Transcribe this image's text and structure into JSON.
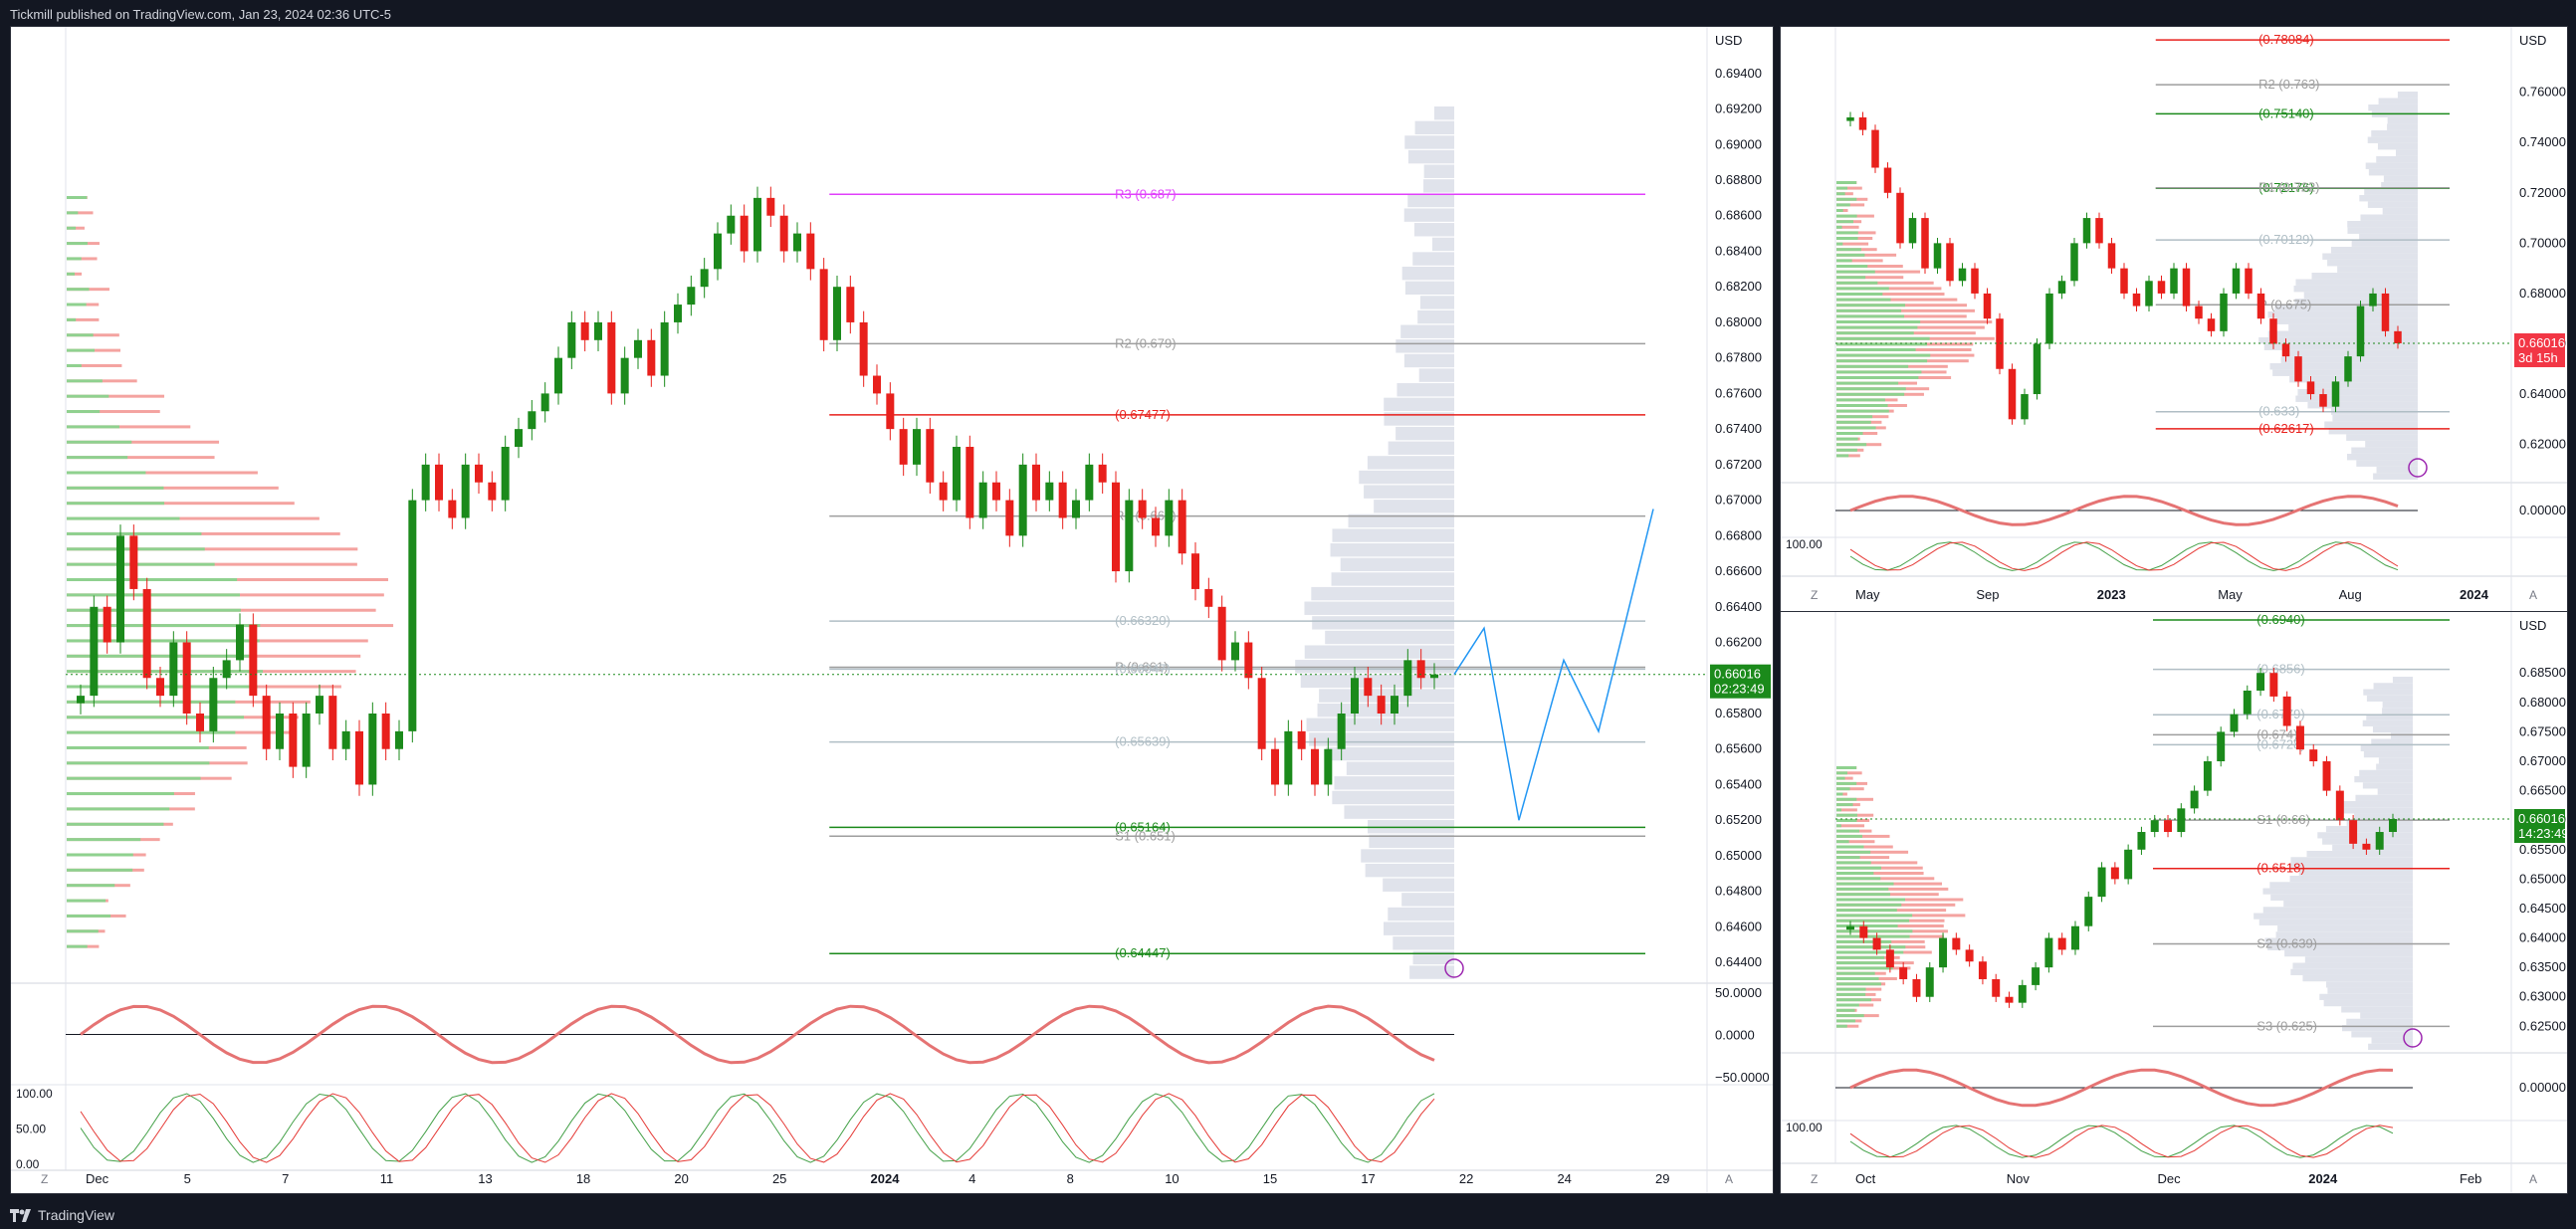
{
  "header": {
    "text": "Tickmill published on TradingView.com, Jan 23, 2024 02:36 UTC-5"
  },
  "footer": {
    "brand": "TradingView"
  },
  "colors": {
    "up": "#1b8a1b",
    "down": "#e8201c",
    "pivot": "#9e9e9e",
    "resistance_magenta": "#e040fb",
    "projection": "#2196f3",
    "orange": "#ff9800",
    "volume_profile": "#e0e3eb"
  },
  "panels": [
    {
      "id": "main",
      "currency": "USD",
      "price_labels": [
        "0.69400",
        "0.69200",
        "0.69000",
        "0.68800",
        "0.68600",
        "0.68400",
        "0.68200",
        "0.68000",
        "0.67800",
        "0.67600",
        "0.67400",
        "0.67200",
        "0.67000",
        "0.66800",
        "0.66600",
        "0.66400",
        "0.66200",
        "0.66000",
        "0.65800",
        "0.65600",
        "0.65400",
        "0.65200",
        "0.65000",
        "0.64800",
        "0.64600",
        "0.64400"
      ],
      "last_price": "0.66016",
      "countdown": "02:23:49",
      "levels": [
        {
          "label": "R3 (0.687)",
          "price": 0.6872,
          "color": "#e040fb"
        },
        {
          "label": "R2 (0.679)",
          "price": 0.6788,
          "color": "#9e9e9e"
        },
        {
          "label": "(0.67477)",
          "price": 0.6748,
          "color": "#e8201c"
        },
        {
          "label": "R1 (0.669)",
          "price": 0.6691,
          "color": "#9e9e9e"
        },
        {
          "label": "(0.66320)",
          "price": 0.6632,
          "color": "#b0bec5"
        },
        {
          "label": "P (0.661)",
          "price": 0.6606,
          "color": "#9e9e9e"
        },
        {
          "label": "(0.66047)",
          "price": 0.6605,
          "color": "#b0bec5"
        },
        {
          "label": "(0.65639)",
          "price": 0.6564,
          "color": "#b0bec5"
        },
        {
          "label": "(0.65164)",
          "price": 0.6516,
          "color": "#1b8a1b"
        },
        {
          "label": "S1 (0.651)",
          "price": 0.6511,
          "color": "#9e9e9e"
        },
        {
          "label": "(0.64447)",
          "price": 0.6445,
          "color": "#1b8a1b"
        }
      ],
      "osc1_labels": [
        "50.0000",
        "0.0000",
        "−50.0000"
      ],
      "osc2_labels": [
        "100.00",
        "50.00",
        "0.00"
      ],
      "time_labels": [
        "Dec",
        "5",
        "7",
        "11",
        "13",
        "18",
        "20",
        "25",
        "2024",
        "4",
        "8",
        "10",
        "15",
        "17",
        "22",
        "24",
        "29"
      ],
      "buttons": [
        "Z",
        "A"
      ]
    },
    {
      "id": "top-right",
      "currency": "USD",
      "price_labels": [
        "0.76000",
        "0.74000",
        "0.72000",
        "0.70000",
        "0.68000",
        "0.66000",
        "0.64000",
        "0.62000"
      ],
      "last_price": "0.66016",
      "countdown": "3d 15h",
      "levels": [
        {
          "label": "(0.78084)",
          "price": 0.7808,
          "color": "#e8201c"
        },
        {
          "label": "R2 (0.763)",
          "price": 0.763,
          "color": "#9e9e9e"
        },
        {
          "label": "(0.75140)",
          "price": 0.7514,
          "color": "#1b8a1b"
        },
        {
          "label": "(0.72176)",
          "price": 0.7218,
          "color": "#1b8a1b"
        },
        {
          "label": "R1 (0.722)",
          "price": 0.722,
          "color": "#9e9e9e"
        },
        {
          "label": "(0.70129)",
          "price": 0.7013,
          "color": "#b0bec5"
        },
        {
          "label": "P (0.675)",
          "price": 0.6755,
          "color": "#9e9e9e"
        },
        {
          "label": "(0.633)",
          "price": 0.633,
          "color": "#b0bec5"
        },
        {
          "label": "(0.62617)",
          "price": 0.6262,
          "color": "#e8201c"
        }
      ],
      "osc1_labels": [
        "0.00000"
      ],
      "osc2_labels": [
        "100.00"
      ],
      "time_labels": [
        "May",
        "Sep",
        "2023",
        "May",
        "Aug",
        "2024"
      ],
      "buttons": [
        "Z",
        "A"
      ]
    },
    {
      "id": "bottom-right",
      "currency": "USD",
      "price_labels": [
        "0.68500",
        "0.68000",
        "0.67500",
        "0.67000",
        "0.66500",
        "0.66000",
        "0.65500",
        "0.65000",
        "0.64500",
        "0.64000",
        "0.63500",
        "0.63000",
        "0.62500"
      ],
      "last_price": "0.66016",
      "countdown": "14:23:49",
      "levels": [
        {
          "label": "(0.6940)",
          "price": 0.694,
          "color": "#1b8a1b"
        },
        {
          "label": "(0.6856)",
          "price": 0.6856,
          "color": "#b0bec5"
        },
        {
          "label": "(0.6779)",
          "price": 0.6779,
          "color": "#b0bec5"
        },
        {
          "label": "(0.674)",
          "price": 0.6745,
          "color": "#9e9e9e"
        },
        {
          "label": "(0.6728)",
          "price": 0.6728,
          "color": "#b0bec5"
        },
        {
          "label": "S1 (0.66)",
          "price": 0.66,
          "color": "#9e9e9e"
        },
        {
          "label": "(0.6518)",
          "price": 0.6518,
          "color": "#e8201c"
        },
        {
          "label": "S2 (0.639)",
          "price": 0.639,
          "color": "#9e9e9e"
        },
        {
          "label": "S3 (0.625)",
          "price": 0.625,
          "color": "#9e9e9e"
        }
      ],
      "osc1_labels": [
        "0.00000"
      ],
      "osc2_labels": [
        "100.00"
      ],
      "time_labels": [
        "Oct",
        "Nov",
        "Dec",
        "2024",
        "Feb"
      ],
      "buttons": [
        "Z",
        "A"
      ]
    }
  ],
  "chart_data": [
    {
      "type": "candlestick",
      "title": "",
      "ylim": [
        0.643,
        0.6955
      ],
      "closes": [
        0.659,
        0.664,
        0.662,
        0.668,
        0.665,
        0.66,
        0.659,
        0.662,
        0.658,
        0.657,
        0.66,
        0.661,
        0.663,
        0.659,
        0.656,
        0.658,
        0.655,
        0.658,
        0.659,
        0.656,
        0.657,
        0.654,
        0.658,
        0.656,
        0.657,
        0.67,
        0.672,
        0.67,
        0.669,
        0.672,
        0.671,
        0.67,
        0.673,
        0.674,
        0.675,
        0.676,
        0.678,
        0.68,
        0.679,
        0.68,
        0.676,
        0.678,
        0.679,
        0.677,
        0.68,
        0.681,
        0.682,
        0.683,
        0.685,
        0.686,
        0.684,
        0.687,
        0.686,
        0.684,
        0.685,
        0.683,
        0.679,
        0.682,
        0.68,
        0.677,
        0.676,
        0.674,
        0.672,
        0.674,
        0.671,
        0.67,
        0.673,
        0.669,
        0.671,
        0.67,
        0.668,
        0.672,
        0.67,
        0.671,
        0.669,
        0.67,
        0.672,
        0.671,
        0.666,
        0.67,
        0.669,
        0.668,
        0.67,
        0.667,
        0.665,
        0.664,
        0.661,
        0.662,
        0.66,
        0.656,
        0.654,
        0.657,
        0.656,
        0.654,
        0.656,
        0.658,
        0.66,
        0.659,
        0.658,
        0.659,
        0.661,
        0.66,
        0.6602
      ]
    },
    {
      "type": "candlestick",
      "title": "",
      "ylim": [
        0.606,
        0.784
      ],
      "closes": [
        0.75,
        0.745,
        0.73,
        0.72,
        0.7,
        0.71,
        0.69,
        0.7,
        0.685,
        0.69,
        0.68,
        0.67,
        0.65,
        0.63,
        0.64,
        0.66,
        0.68,
        0.685,
        0.7,
        0.71,
        0.7,
        0.69,
        0.68,
        0.675,
        0.685,
        0.68,
        0.69,
        0.675,
        0.67,
        0.665,
        0.68,
        0.69,
        0.68,
        0.67,
        0.66,
        0.655,
        0.645,
        0.64,
        0.635,
        0.645,
        0.655,
        0.675,
        0.68,
        0.665,
        0.6602
      ]
    },
    {
      "type": "candlestick",
      "title": "",
      "ylim": [
        0.621,
        0.6945
      ],
      "closes": [
        0.642,
        0.64,
        0.638,
        0.635,
        0.633,
        0.63,
        0.635,
        0.64,
        0.638,
        0.636,
        0.633,
        0.63,
        0.629,
        0.632,
        0.635,
        0.64,
        0.638,
        0.642,
        0.647,
        0.652,
        0.65,
        0.655,
        0.658,
        0.66,
        0.658,
        0.662,
        0.665,
        0.67,
        0.675,
        0.678,
        0.682,
        0.685,
        0.681,
        0.676,
        0.672,
        0.67,
        0.665,
        0.66,
        0.656,
        0.655,
        0.658,
        0.6602
      ]
    }
  ]
}
